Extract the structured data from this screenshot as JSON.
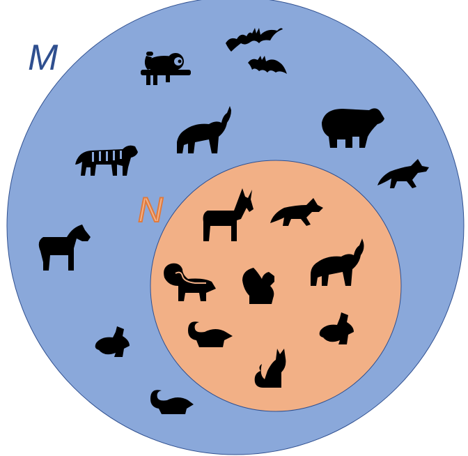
{
  "sets": {
    "outer": {
      "label": "M",
      "fill": "#8aa8da",
      "label_color": "#2f4f8f"
    },
    "inner": {
      "label": "N",
      "fill": "#f2b086",
      "label_color": "#f2b086",
      "label_outline": "#e07a3c"
    }
  },
  "outer_animals": [
    "sloth-icon",
    "bat-icon",
    "bat-icon",
    "bear-icon",
    "wolf-howling-icon",
    "tiger-icon",
    "fox-icon",
    "horse-icon",
    "rabbit-icon",
    "rat-icon"
  ],
  "inner_animals": [
    "deer-icon",
    "fox-icon",
    "skunk-icon",
    "squirrel-icon",
    "wolf-howling-icon",
    "rat-icon",
    "rabbit-icon",
    "cat-icon"
  ],
  "icon_color": "#000000"
}
